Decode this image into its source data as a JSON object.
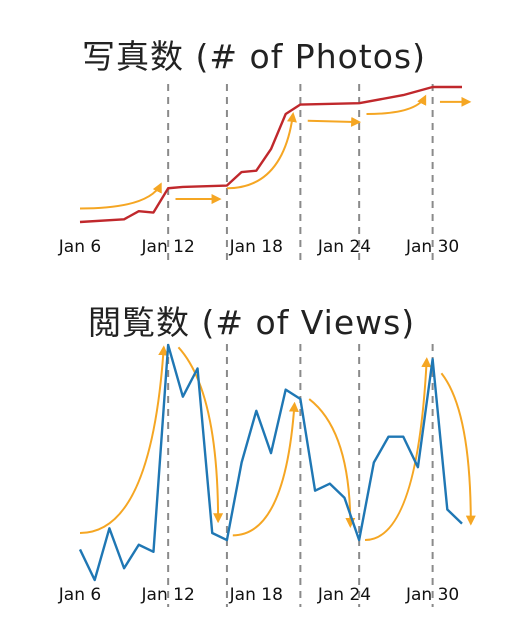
{
  "colors": {
    "photos_line": "#c0282c",
    "views_line": "#1f77b4",
    "trend_arrow": "#f5a623",
    "divider": "#8a8a8a"
  },
  "chart_data": [
    {
      "type": "line",
      "title": "写真数 (# of Photos)",
      "xlabel": "",
      "ylabel": "",
      "x_tick_labels": [
        "Jan 6",
        "Jan 12",
        "Jan 18",
        "Jan 24",
        "Jan 30"
      ],
      "x_tick_days": [
        6,
        12,
        18,
        24,
        30
      ],
      "xlim": [
        4,
        33
      ],
      "ylim": [
        0,
        100
      ],
      "grid": false,
      "dividers": [
        12,
        16,
        21,
        25,
        30
      ],
      "series": [
        {
          "x": [
            6,
            9,
            10,
            11,
            12,
            13,
            16,
            17,
            18,
            19,
            20,
            21,
            25,
            28,
            30,
            32
          ],
          "values": [
            0,
            2,
            8,
            7,
            25,
            26,
            27,
            37,
            38,
            54,
            80,
            87,
            88,
            94,
            100,
            100
          ]
        }
      ],
      "annotations": [
        {
          "type": "arrow",
          "x": [
            6,
            11.5
          ],
          "values": [
            10,
            28
          ],
          "curve": "up"
        },
        {
          "type": "arrow",
          "x": [
            12.5,
            15.5
          ],
          "values": [
            17,
            17
          ],
          "curve": "flat"
        },
        {
          "type": "arrow",
          "x": [
            16,
            20.5
          ],
          "values": [
            25,
            80
          ],
          "curve": "up"
        },
        {
          "type": "arrow",
          "x": [
            21.5,
            25
          ],
          "values": [
            75,
            74
          ],
          "curve": "flat"
        },
        {
          "type": "arrow",
          "x": [
            25.5,
            29.5
          ],
          "values": [
            80,
            93
          ],
          "curve": "up"
        },
        {
          "type": "arrow",
          "x": [
            30.5,
            32.5
          ],
          "values": [
            89,
            89
          ],
          "curve": "flat"
        }
      ]
    },
    {
      "type": "line",
      "title": "閲覧数 (# of Views)",
      "xlabel": "",
      "ylabel": "",
      "x_tick_labels": [
        "Jan 6",
        "Jan 12",
        "Jan 18",
        "Jan 24",
        "Jan 30"
      ],
      "x_tick_days": [
        6,
        12,
        18,
        24,
        30
      ],
      "xlim": [
        4,
        33
      ],
      "ylim": [
        0,
        100
      ],
      "grid": false,
      "dividers": [
        12,
        16,
        21,
        25,
        30
      ],
      "series": [
        {
          "x": [
            6,
            7,
            8,
            9,
            10,
            11,
            12,
            13,
            14,
            15,
            16,
            17,
            18,
            19,
            20,
            21,
            22,
            23,
            24,
            25,
            26,
            27,
            28,
            29,
            30,
            31,
            32
          ],
          "values": [
            13,
            0,
            22,
            5,
            15,
            12,
            100,
            78,
            90,
            20,
            17,
            50,
            72,
            54,
            81,
            77,
            38,
            41,
            35,
            17,
            50,
            61,
            61,
            48,
            94,
            30,
            24
          ]
        }
      ],
      "annotations": [
        {
          "type": "arrow",
          "x": [
            6,
            11.7
          ],
          "values": [
            20,
            99
          ],
          "curve": "up"
        },
        {
          "type": "arrow",
          "x": [
            12.7,
            15.4
          ],
          "values": [
            99,
            25
          ],
          "curve": "down"
        },
        {
          "type": "arrow",
          "x": [
            16.4,
            20.6
          ],
          "values": [
            19,
            75
          ],
          "curve": "up"
        },
        {
          "type": "arrow",
          "x": [
            21.6,
            24.4
          ],
          "values": [
            77,
            23
          ],
          "curve": "down"
        },
        {
          "type": "arrow",
          "x": [
            25.4,
            29.6
          ],
          "values": [
            17,
            94
          ],
          "curve": "up"
        },
        {
          "type": "arrow",
          "x": [
            30.6,
            32.6
          ],
          "values": [
            88,
            24
          ],
          "curve": "down"
        }
      ]
    }
  ]
}
